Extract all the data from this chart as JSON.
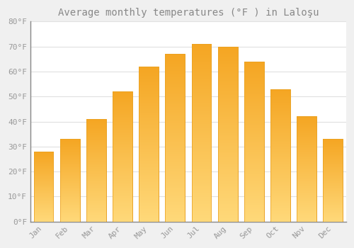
{
  "title": "Average monthly temperatures (°F ) in Laloşu",
  "months": [
    "Jan",
    "Feb",
    "Mar",
    "Apr",
    "May",
    "Jun",
    "Jul",
    "Aug",
    "Sep",
    "Oct",
    "Nov",
    "Dec"
  ],
  "values": [
    28,
    33,
    41,
    52,
    62,
    67,
    71,
    70,
    64,
    53,
    42,
    33
  ],
  "bar_color_top": "#F5A623",
  "bar_color_bottom": "#FFD97A",
  "bar_edge_color": "#E8A020",
  "background_color": "#f0f0f0",
  "plot_background_color": "#ffffff",
  "grid_color": "#e0e0e0",
  "ylim": [
    0,
    80
  ],
  "yticks": [
    0,
    10,
    20,
    30,
    40,
    50,
    60,
    70,
    80
  ],
  "title_fontsize": 10,
  "tick_fontsize": 8,
  "tick_color": "#999999",
  "title_color": "#888888"
}
